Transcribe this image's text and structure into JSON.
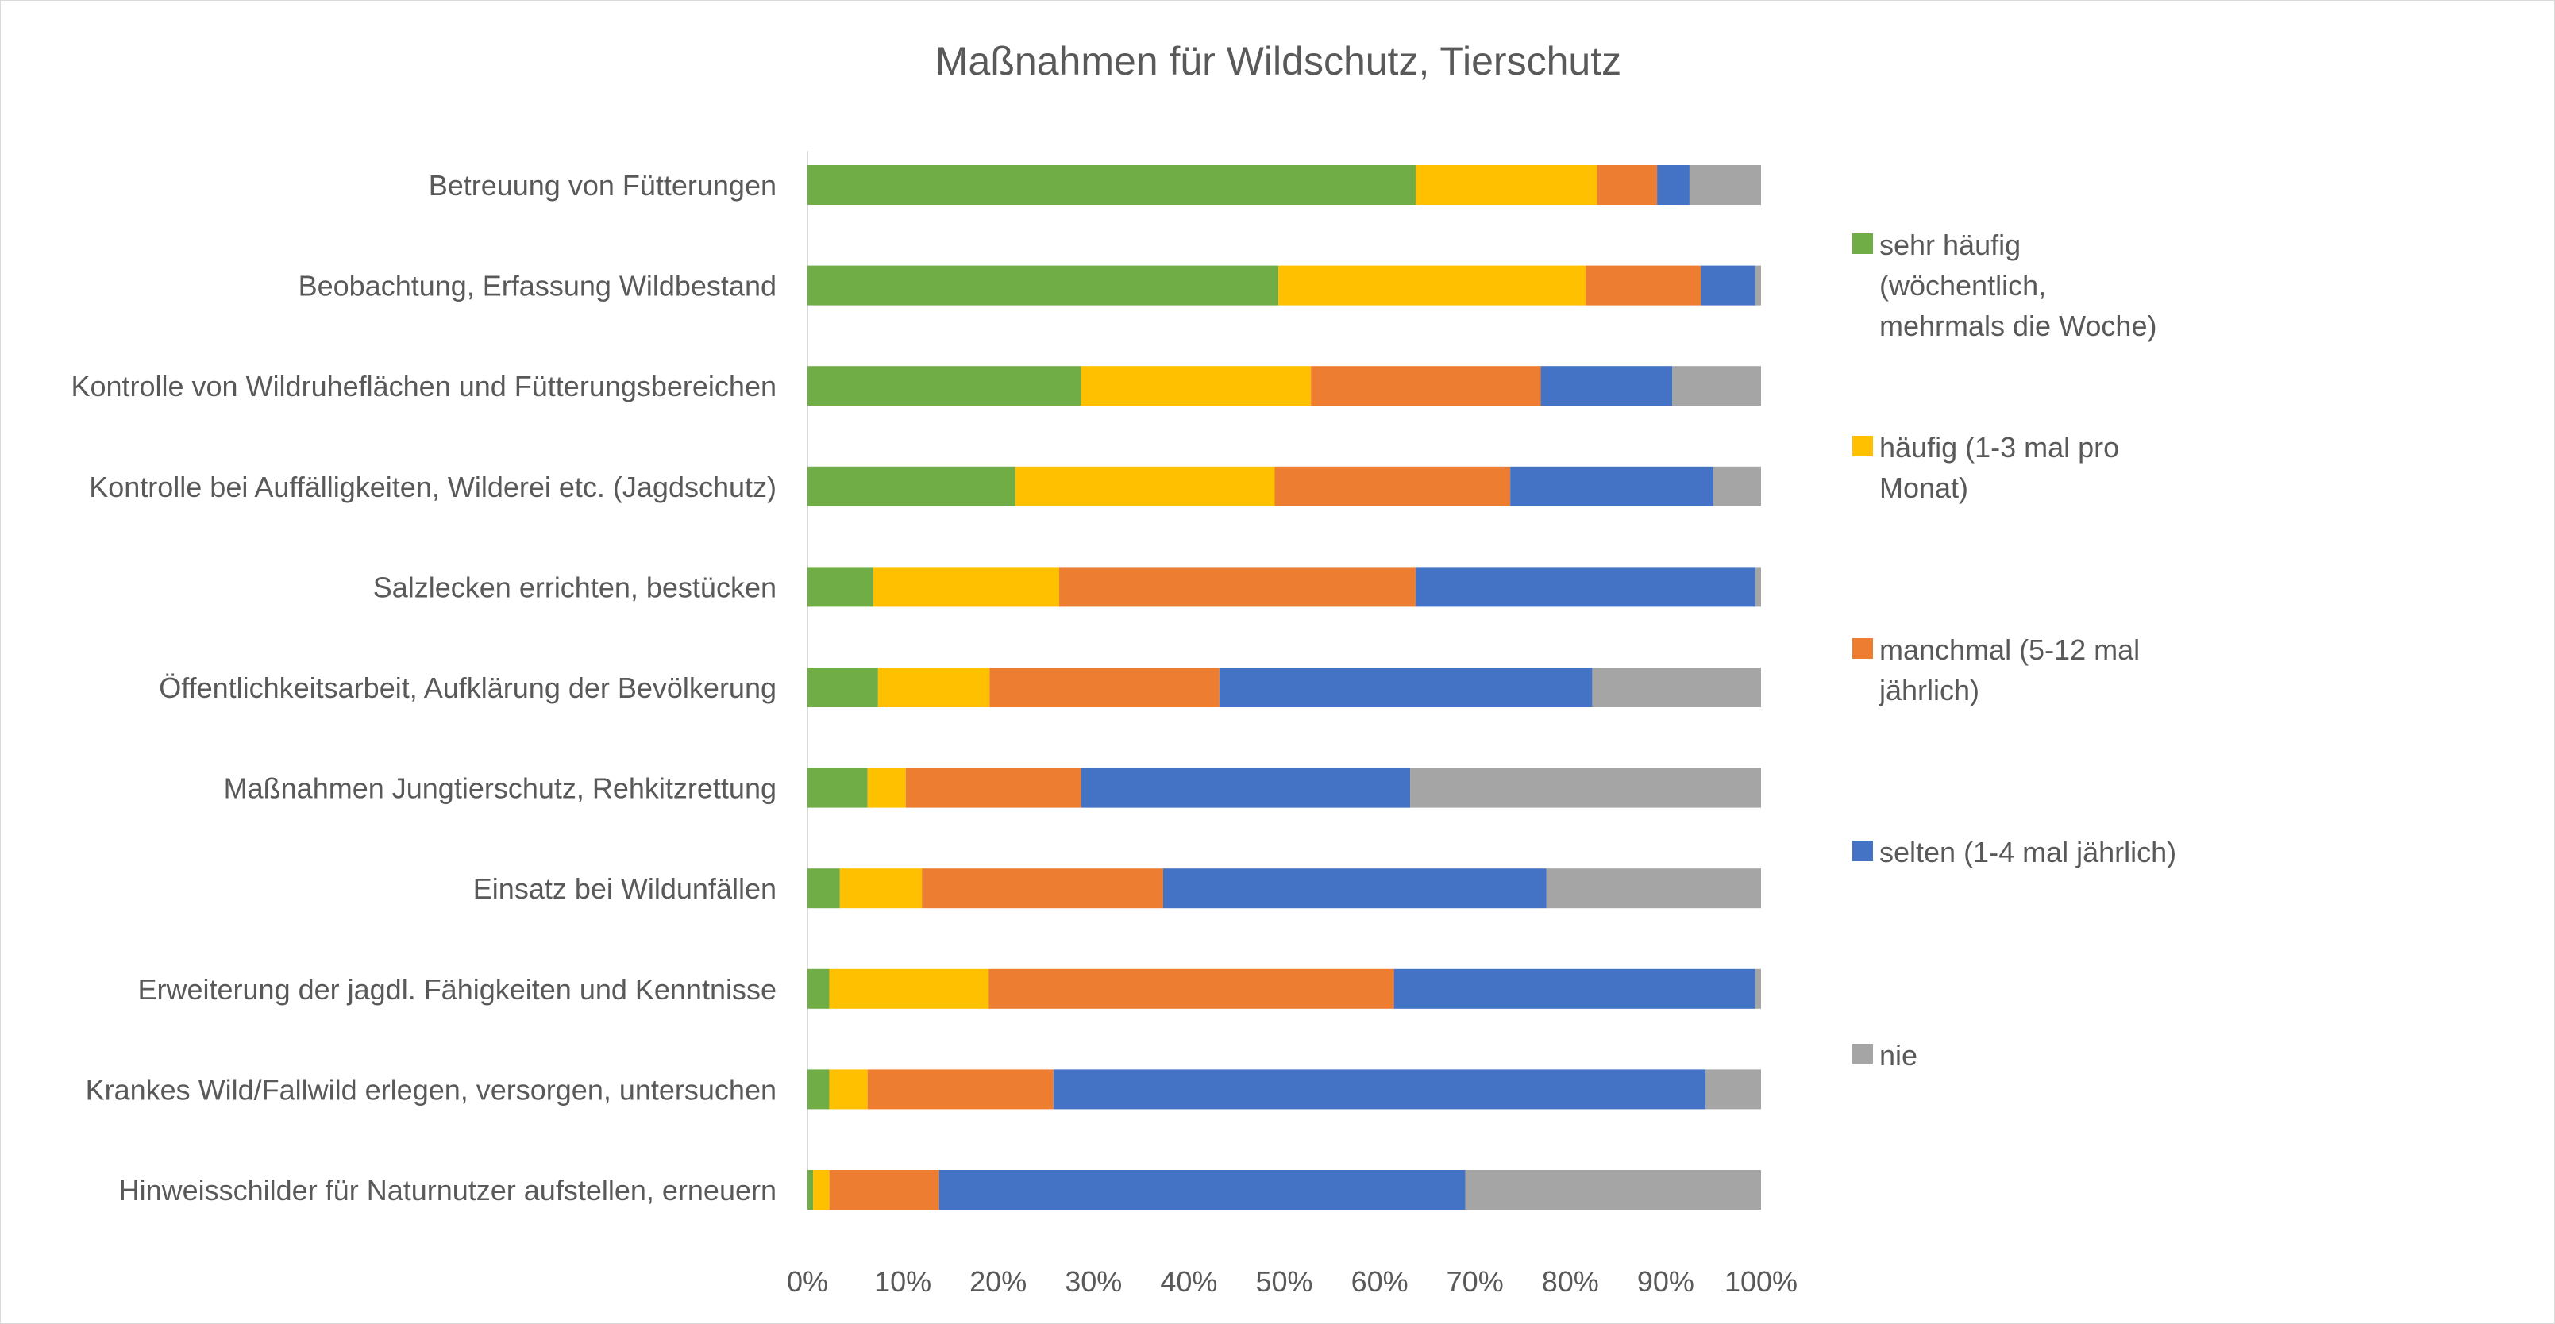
{
  "chart_data": {
    "type": "bar",
    "orientation": "horizontal",
    "stacked": "percent",
    "title": "Maßnahmen für Wildschutz, Tierschutz",
    "categories": [
      "Betreuung von Fütterungen",
      "Beobachtung, Erfassung Wildbestand",
      "Kontrolle von Wildruheflächen und Fütterungsbereichen",
      "Kontrolle bei Auffälligkeiten, Wilderei etc. (Jagdschutz)",
      "Salzlecken errichten, bestücken",
      "Öffentlichkeitsarbeit, Aufklärung der Bevölkerung",
      "Maßnahmen Jungtierschutz, Rehkitzrettung",
      "Einsatz bei Wildunfällen",
      "Erweiterung der jagdl. Fähigkeiten und Kenntnisse",
      "Krankes Wild/Fallwild erlegen, versorgen, untersuchen",
      "Hinweisschilder für Naturnutzer aufstellen, erneuern"
    ],
    "series": [
      {
        "name": "sehr häufig (wöchentlich, mehrmals die Woche)",
        "legend_lines": [
          "sehr häufig",
          "(wöchentlich,",
          "mehrmals die Woche)"
        ],
        "color": "#70ad47",
        "values": [
          63.8,
          49.4,
          28.7,
          21.8,
          6.9,
          7.4,
          6.3,
          3.4,
          2.3,
          2.3,
          0.6
        ]
      },
      {
        "name": "häufig (1-3 mal pro Monat)",
        "legend_lines": [
          "häufig (1-3 mal pro",
          "Monat)"
        ],
        "color": "#ffc000",
        "values": [
          19.0,
          32.2,
          24.1,
          27.2,
          19.5,
          11.7,
          4.0,
          8.6,
          16.7,
          4.0,
          1.7
        ]
      },
      {
        "name": "manchmal (5-12 mal jährlich)",
        "legend_lines": [
          "manchmal (5-12 mal",
          "jährlich)"
        ],
        "color": "#ed7d31",
        "values": [
          6.3,
          12.1,
          24.1,
          24.7,
          37.4,
          24.1,
          18.4,
          25.3,
          42.5,
          19.5,
          11.5
        ]
      },
      {
        "name": "selten (1-4 mal jährlich)",
        "legend_lines": [
          "selten (1-4 mal jährlich)"
        ],
        "color": "#4472c4",
        "values": [
          3.4,
          5.7,
          13.8,
          21.3,
          35.6,
          39.1,
          34.5,
          40.2,
          37.9,
          68.4,
          55.2
        ]
      },
      {
        "name": "nie",
        "legend_lines": [
          "nie"
        ],
        "color": "#a5a5a5",
        "values": [
          7.5,
          0.6,
          9.3,
          5.0,
          0.6,
          17.7,
          36.8,
          22.5,
          0.6,
          5.8,
          31.0
        ]
      }
    ],
    "x_ticks": [
      "0%",
      "10%",
      "20%",
      "30%",
      "40%",
      "50%",
      "60%",
      "70%",
      "80%",
      "90%",
      "100%"
    ],
    "xlim": [
      0,
      100
    ],
    "grid": false,
    "legend_position": "right"
  }
}
